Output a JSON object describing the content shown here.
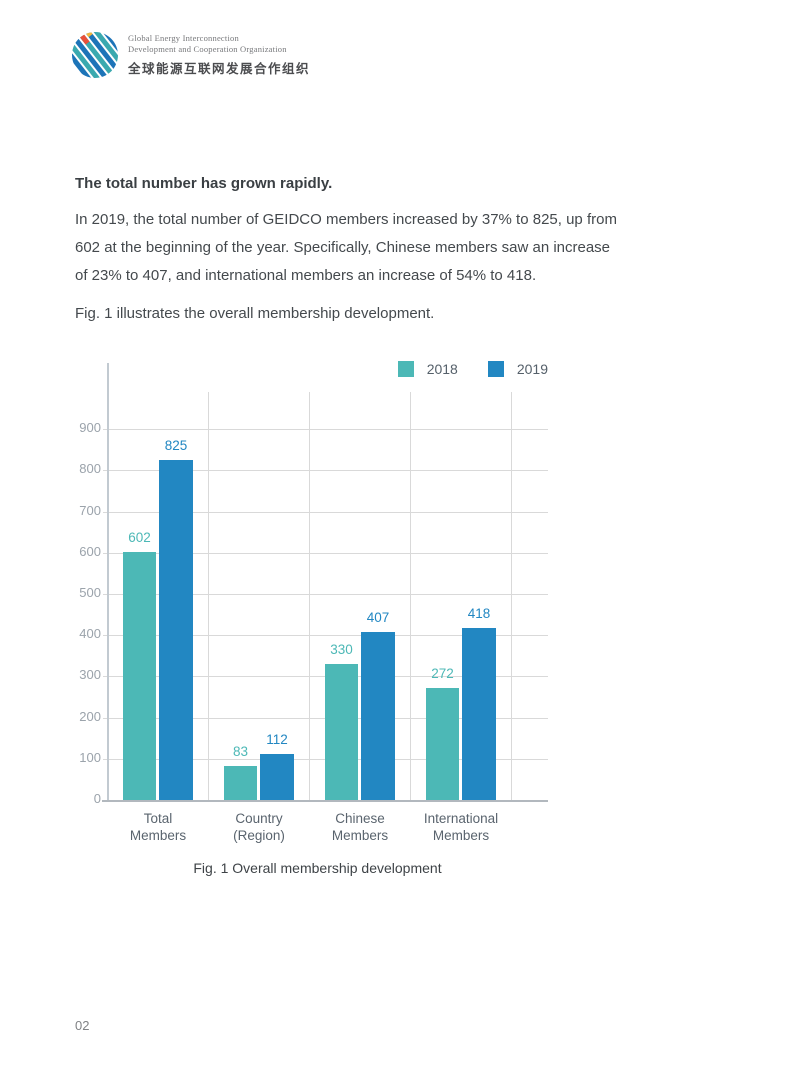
{
  "logo": {
    "line1": "Global Energy Interconnection",
    "line2": "Development and Cooperation Organization",
    "line3": "全球能源互联网发展合作组织"
  },
  "article": {
    "heading": "The total number has grown rapidly.",
    "paragraph1": "In 2019, the total number of GEIDCO members increased by 37% to 825, up from 602 at the beginning of the year. Specifically, Chinese members saw an increase of 23% to 407, and international members an increase of 54% to 418.",
    "paragraph2": "Fig. 1 illustrates the overall membership development."
  },
  "chart_data": {
    "type": "bar",
    "caption": "Fig. 1 Overall membership development",
    "categories": [
      "Total\nMembers",
      "Country\n(Region)",
      "Chinese\nMembers",
      "International\nMembers"
    ],
    "series": [
      {
        "name": "2018",
        "color": "#4cb8b6",
        "values": [
          602,
          83,
          330,
          272
        ]
      },
      {
        "name": "2019",
        "color": "#2287c2",
        "values": [
          825,
          112,
          407,
          418
        ]
      }
    ],
    "ylim": [
      0,
      900
    ],
    "ytick_interval": 100,
    "grid": true,
    "legend_position": "top-right",
    "colors": {
      "gridline": "#d9d9d9",
      "axis": "#c2cad1",
      "baseline": "#b2b8be",
      "tick_text": "#9ba3ab",
      "category_text": "#5a646e"
    }
  },
  "footer": {
    "page_number": "02"
  }
}
